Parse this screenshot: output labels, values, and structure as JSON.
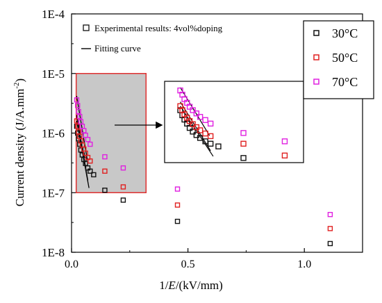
{
  "chart_data": {
    "type": "scatter",
    "title": "",
    "xlabel_prefix": "1/",
    "xlabel_var": "E",
    "xlabel_suffix": "/(kV/mm)",
    "ylabel": "Current density (J/A.mm",
    "ylabel_exp": "-2",
    "ylabel_close": ")",
    "yscale": "log",
    "xlim": [
      0.0,
      1.25
    ],
    "ylim": [
      1e-08,
      0.0001
    ],
    "x_ticks": [
      {
        "value": 0.0,
        "label": "0.0"
      },
      {
        "value": 0.5,
        "label": "0.5"
      },
      {
        "value": 1.0,
        "label": "1.0"
      }
    ],
    "y_ticks": [
      {
        "value": 1e-08,
        "label": "1E-8"
      },
      {
        "value": 1e-07,
        "label": "1E-7"
      },
      {
        "value": 1e-06,
        "label": "1E-6"
      },
      {
        "value": 1e-05,
        "label": "1E-5"
      },
      {
        "value": 0.0001,
        "label": "1E-4"
      }
    ],
    "annotation_legend": [
      {
        "marker": "square",
        "label": "Experimental results:  4vol%doping"
      },
      {
        "marker": "line",
        "label": "Fitting curve"
      }
    ],
    "legend": {
      "placement": "top-right",
      "entries": [
        {
          "name": "30",
          "unit": "°C",
          "color": "#111111"
        },
        {
          "name": "50",
          "unit": "°C",
          "color": "#e02020"
        },
        {
          "name": "70",
          "unit": "°C",
          "color": "#e020e0"
        }
      ]
    },
    "series": [
      {
        "name": "30",
        "color": "#111111",
        "x": [
          0.022,
          0.026,
          0.03,
          0.035,
          0.04,
          0.046,
          0.053,
          0.06,
          0.07,
          0.08,
          0.095,
          0.143,
          0.222,
          0.455,
          1.111
        ],
        "y": [
          1.3e-06,
          1e-06,
          8e-07,
          6.5e-07,
          5.2e-07,
          4.3e-07,
          3.6e-07,
          3.1e-07,
          2.6e-07,
          2.3e-07,
          2e-07,
          1.1e-07,
          7.5e-08,
          3.3e-08,
          1.4e-08
        ]
      },
      {
        "name": "50",
        "color": "#e02020",
        "x": [
          0.022,
          0.026,
          0.03,
          0.035,
          0.04,
          0.046,
          0.053,
          0.06,
          0.07,
          0.08,
          0.143,
          0.222,
          0.455,
          1.111
        ],
        "y": [
          1.6e-06,
          1.3e-06,
          1.05e-06,
          8.8e-07,
          7.4e-07,
          6.3e-07,
          5.4e-07,
          4.6e-07,
          3.9e-07,
          3.4e-07,
          2.3e-07,
          1.25e-07,
          6.2e-08,
          2.5e-08
        ]
      },
      {
        "name": "70",
        "color": "#e020e0",
        "x": [
          0.022,
          0.026,
          0.03,
          0.035,
          0.04,
          0.046,
          0.053,
          0.06,
          0.07,
          0.08,
          0.143,
          0.222,
          0.455,
          1.111
        ],
        "y": [
          3.6e-06,
          2.9e-06,
          2.3e-06,
          1.9e-06,
          1.55e-06,
          1.3e-06,
          1.1e-06,
          9.2e-07,
          7.8e-07,
          6.5e-07,
          4e-07,
          2.6e-07,
          1.15e-07,
          4.3e-08
        ]
      }
    ],
    "fit_curves": [
      {
        "name": "30",
        "x": [
          0.022,
          0.075
        ],
        "y": [
          1.6e-06,
          1.2e-07
        ]
      },
      {
        "name": "50",
        "x": [
          0.022,
          0.07
        ],
        "y": [
          2e-06,
          1.6e-07
        ]
      },
      {
        "name": "70",
        "x": [
          0.022,
          0.068
        ],
        "y": [
          4.2e-06,
          3.5e-07
        ]
      }
    ],
    "highlight_region": {
      "x": [
        0.02,
        0.32
      ],
      "y": [
        1e-07,
        1e-05
      ]
    },
    "inset": {
      "source_region": "highlight_region",
      "arrow": true
    }
  }
}
